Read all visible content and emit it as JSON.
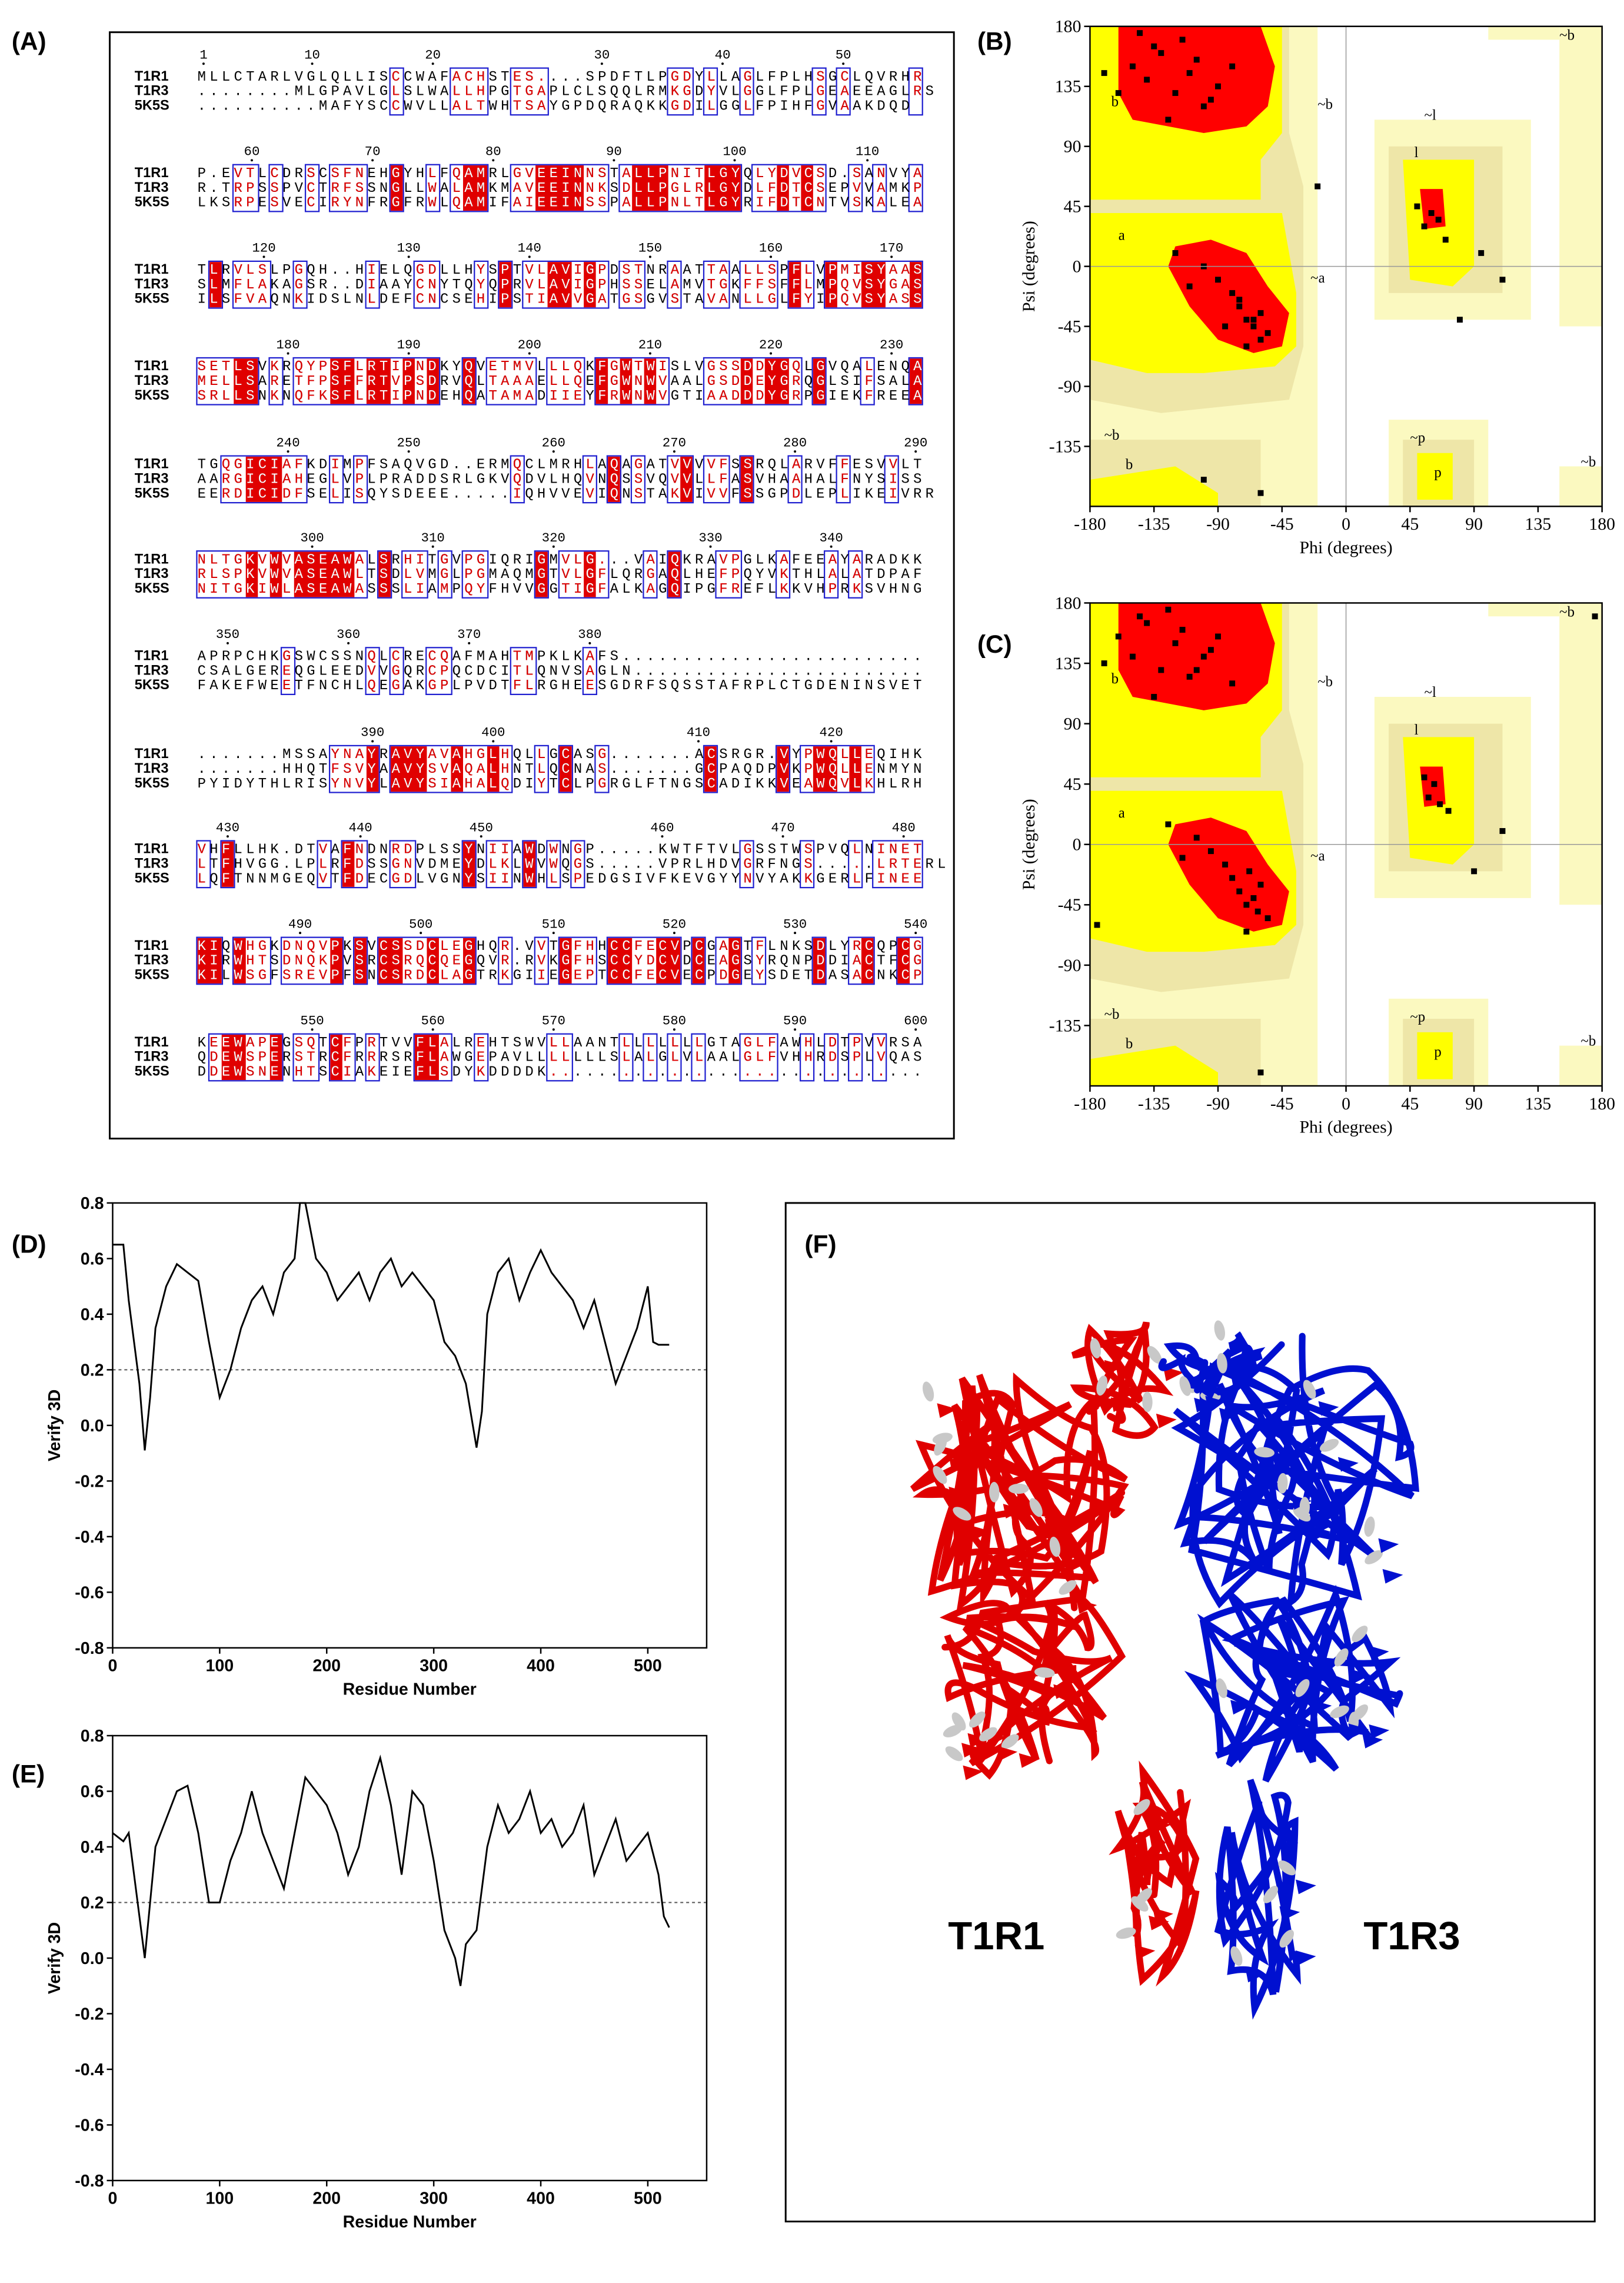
{
  "panel_labels": [
    "(A)",
    "(B)",
    "(C)",
    "(D)",
    "(E)",
    "(F)"
  ],
  "alignment": {
    "names": [
      "T1R1",
      "T1R3",
      "5K5S"
    ],
    "blocks": [
      {
        "numbers": [
          1,
          10,
          20,
          30,
          40,
          50
        ],
        "rows": [
          "MLLCTARLVGLQLLISCCWAFACHSTES....SPDFTLPGDYLLAGLFPLHSGCLQVRHR",
          "........MLGPAVLGLSLWALLHPGTGAPLCLSQQLRMKGDYVLGGLFPLGEAEEAGLRS",
          "..........MAFYSCCWVLLALTWHTSAYGPDQRAQKKGDILGGLFPIHFGVAAKDQD"
        ]
      },
      {
        "numbers": [
          60,
          70,
          80,
          90,
          100,
          110
        ],
        "rows": [
          "P.EVTLCDRSCSFNEHGYHLFQAMRLGVEEINNSTALLPNITLGYQLYDVCSD.SANVYA",
          "R.TRPSSPVCTRFSSNGLLWALAMKMAVEEINNKSDLLPGLRLGYDLFDTCSEPVVAMKP",
          "LKSRPESVECIRYNFRGFRWLQAMIFAIEEINSSPALLPNLTLGYRIFDTCNTVSKALEA"
        ]
      },
      {
        "numbers": [
          120,
          130,
          140,
          150,
          160,
          170
        ],
        "rows": [
          "TLRVLSLPGQH..HIELQGDLLHYSPTVLAVIGPDSTNRAATTAALLSPFLVPMISYAAS",
          "SLMFLAKAGSR..DIAAYCNYTQYQPRVLAVIGPHSSELAMVTGKFFSFFLMPQVSYGAS",
          "ILSFVAQNKIDSLNLDEFCNCSEHIPSTIAVVGATGSGVSTAVANLLGLFYIPQVSYASS"
        ]
      },
      {
        "numbers": [
          180,
          190,
          200,
          210,
          220,
          230
        ],
        "rows": [
          "SETLSVKRQYPSFLRTIPNDKYQVETMVLLLQKFGWTWISLVGSSDDYGQLGVQALENQA",
          "MELLSARETFPSFFRTVPSDRVQLTAAAELLQEFGWNWVAALGSDDEYGRQGLSIFSALA",
          "SRLLSNKNQFKSFLRTIPNDEHQATAMADIIEYFRWNWVGTIAADDDYGRPGIEKFREEA"
        ]
      },
      {
        "numbers": [
          240,
          250,
          260,
          270,
          280,
          290
        ],
        "rows": [
          "TGQGICIAFKDIMPFSAQVGD..ERMQCLMRHLAQAGATVVVVFSSRQLARVFFESVVLT",
          "AARGICIAHEGLVPLPRADDSRLGKVQDVLHQVNQSSVQVVLLFASVHAAHALFNYSISS",
          "EERDICIDFSELISQYSDEEE.....IQHVVEVIQNSTAKVIVVFSSGPDLEPLIKEIVRR"
        ]
      },
      {
        "numbers": [
          300,
          310,
          320,
          330,
          340
        ],
        "rows": [
          "NLTGKVWVASEAWALSRHITGVPGIQRIGMVLG...VAIQKRAVPGLKAFEEAYARADKK",
          "RLSPKVWVASEAWLTSDLVMGLPGMAQMGTVLGFLQRGAQLHEFPQYVKTHLALATDPAF",
          "NITGKIWLASEAWASSSLIAMPQYFHVVGGTIGFALKAGQIPGFREFLKKVHPRKSVHNG"
        ]
      },
      {
        "numbers": [
          350,
          360,
          370,
          380
        ],
        "rows": [
          "APRPCHKGSWCSSNQLCRECQAFMAHTMPKLKAFS.........................",
          "CSALGEREQGLEEDVVGQRCPQCDCITLQNVSAGLN........................",
          "FAKEFWEETFNCHLQEGAKGPLPVDTFLRGHEESGDRFSQSSTAFRPLCTGDENINSVET"
        ]
      },
      {
        "numbers": [
          390,
          400,
          410,
          420
        ],
        "rows": [
          ".......MSSAYNAYRAVYAVAHGLHQLLGCASG.......ACSRGR.VYPWQLLEQIHK",
          ".......HHQTFSVYAAVYSVAQALHNTLQCNAS.......GCPAQDPVKPWQLLENMYN",
          "PYIDYTHLRISYNVYLAVYSIAHALQDIYTCLPGRGLFTNGSCADIKKVEAWQVLKHLRH"
        ]
      },
      {
        "numbers": [
          430,
          440,
          450,
          460,
          470,
          480
        ],
        "rows": [
          "VHFLLHK.DTVAFNDNRDPLSSYNIIAWDWNGP.....KWTFTVLGSSTWSPVQLNINET",
          "LTFHVGG.LPLRFDSSGNVDMEYDLKLWVWQGS.....VPRLHDVGRFNGS.....LRTERL",
          "LQFTNNMGEQVTFDECGDLVGNYSIINWHLSPEDGSIVFKEVGYYNVYAKKGERLFINEE"
        ]
      },
      {
        "numbers": [
          490,
          500,
          510,
          520,
          530,
          540
        ],
        "rows": [
          "KIQWHGKDNQVPKSVCSSDCLEGHQR.VVTGFHHCCFECVPCGAGTFLNKSDLYRCQPCG",
          "KIRWHTSDNQKPVSRCSRQCQEGQVR.RVKGFHSCCYDCVDCEAGSYRQNPDDIACTFCG",
          "KILWSGFSREVPFSNCSRDCLAGTRKGIIEGEPTCCFECVECPDGEYSDETDASACNKCP"
        ]
      },
      {
        "numbers": [
          550,
          560,
          570,
          580,
          590,
          600
        ],
        "rows": [
          "KEEWAPEGSQTCFPRTVVFLALREHTSWVLLAANTLLLLLLLGTAGLFAWHLDTPVVRSA",
          "QDEWSPERSTRCFRRRSRFLAWGEPAVLLLLLLLSLALGLVLAALGLFVHHRDSPLVQAS",
          "DDEWSNENHTSCIAKEIEFLSDYKDDDDK..............................."
        ]
      }
    ]
  },
  "chart_data": [
    {
      "type": "scatter",
      "xlabel": "Phi (degrees)",
      "ylabel": "Psi (degrees)",
      "xlim": [
        -180,
        180
      ],
      "ylim": [
        -180,
        180
      ],
      "xticks": [
        -180,
        -135,
        -90,
        -45,
        0,
        45,
        90,
        135,
        180
      ],
      "yticks": [
        -135,
        -90,
        -45,
        0,
        45,
        90,
        135,
        180
      ],
      "region_labels": [
        "b",
        "~b",
        "a",
        "~a",
        "~l",
        "l",
        "~b",
        "b",
        "~p",
        "p",
        "~b",
        "~b"
      ],
      "color": "#000000",
      "x": [
        -150,
        -140,
        -130,
        -120,
        -110,
        -100,
        -90,
        -80,
        -125,
        -135,
        -115,
        -105,
        -95,
        -145,
        -160,
        -170,
        -75,
        -70,
        -65,
        -60,
        -55,
        -80,
        -90,
        -100,
        -70,
        -60,
        -85,
        -75,
        -65,
        -110,
        -120,
        60,
        55,
        65,
        70,
        50,
        80,
        -20,
        110,
        -60,
        -100,
        95
      ],
      "values": [
        150,
        140,
        160,
        130,
        145,
        120,
        135,
        150,
        110,
        165,
        170,
        155,
        125,
        175,
        130,
        145,
        -30,
        -40,
        -45,
        -35,
        -50,
        -20,
        -10,
        0,
        -60,
        -55,
        -45,
        -25,
        -40,
        -15,
        10,
        40,
        30,
        35,
        20,
        45,
        -40,
        60,
        -10,
        -170,
        -160,
        10
      ]
    },
    {
      "type": "scatter",
      "xlabel": "Phi (degrees)",
      "ylabel": "Psi (degrees)",
      "xlim": [
        -180,
        180
      ],
      "ylim": [
        -180,
        180
      ],
      "xticks": [
        -180,
        -135,
        -90,
        -45,
        0,
        45,
        90,
        135,
        180
      ],
      "yticks": [
        -135,
        -90,
        -45,
        0,
        45,
        90,
        135,
        180
      ],
      "region_labels": [
        "b",
        "~b",
        "a",
        "~a",
        "~l",
        "l",
        "~b",
        "b",
        "~p",
        "p",
        "~b",
        "~b"
      ],
      "color": "#000000",
      "x": [
        -160,
        -150,
        -140,
        -130,
        -120,
        -110,
        -100,
        -90,
        -80,
        -145,
        -125,
        -115,
        -105,
        -95,
        -170,
        -135,
        -75,
        -70,
        -65,
        -60,
        -55,
        -85,
        -95,
        -105,
        -70,
        -62,
        -80,
        -68,
        -115,
        -125,
        62,
        58,
        66,
        72,
        55,
        110,
        -175,
        175,
        -60,
        90
      ],
      "values": [
        155,
        140,
        165,
        130,
        150,
        125,
        140,
        155,
        120,
        170,
        175,
        160,
        130,
        145,
        135,
        110,
        -35,
        -45,
        -40,
        -30,
        -55,
        -15,
        -5,
        5,
        -65,
        -50,
        -25,
        -20,
        -10,
        15,
        45,
        35,
        30,
        25,
        50,
        10,
        -60,
        170,
        -170,
        -20
      ]
    },
    {
      "type": "line",
      "xlabel": "Residue Number",
      "ylabel": "Verify 3D",
      "xlim": [
        0,
        555
      ],
      "ylim": [
        -0.8,
        0.8
      ],
      "xticks": [
        0,
        100,
        200,
        300,
        400,
        500
      ],
      "yticks": [
        -0.8,
        -0.6,
        -0.4,
        -0.2,
        {
          "value": 0,
          "label": "0.0"
        },
        0.2,
        0.4,
        0.6,
        0.8
      ],
      "threshold": 0.2,
      "color": "#000000",
      "x": [
        0,
        10,
        15,
        20,
        25,
        30,
        35,
        40,
        50,
        60,
        70,
        80,
        90,
        95,
        100,
        110,
        120,
        130,
        140,
        150,
        160,
        170,
        175,
        180,
        190,
        200,
        210,
        220,
        230,
        240,
        250,
        260,
        270,
        280,
        290,
        300,
        310,
        320,
        330,
        340,
        345,
        350,
        360,
        370,
        380,
        390,
        400,
        410,
        420,
        430,
        440,
        450,
        460,
        470,
        480,
        490,
        500,
        505,
        510,
        520
      ],
      "values": [
        0.65,
        0.65,
        0.45,
        0.3,
        0.15,
        -0.09,
        0.1,
        0.35,
        0.5,
        0.58,
        0.55,
        0.52,
        0.3,
        0.2,
        0.1,
        0.2,
        0.35,
        0.45,
        0.5,
        0.4,
        0.55,
        0.6,
        0.8,
        0.8,
        0.6,
        0.55,
        0.45,
        0.5,
        0.55,
        0.45,
        0.55,
        0.6,
        0.5,
        0.55,
        0.5,
        0.45,
        0.3,
        0.25,
        0.15,
        -0.08,
        0.05,
        0.4,
        0.55,
        0.6,
        0.45,
        0.55,
        0.63,
        0.55,
        0.5,
        0.45,
        0.35,
        0.45,
        0.3,
        0.15,
        0.25,
        0.35,
        0.5,
        0.3,
        0.29,
        0.29
      ]
    },
    {
      "type": "line",
      "xlabel": "Residue Number",
      "ylabel": "Verify 3D",
      "xlim": [
        0,
        555
      ],
      "ylim": [
        -0.8,
        0.8
      ],
      "xticks": [
        0,
        100,
        200,
        300,
        400,
        500
      ],
      "yticks": [
        -0.8,
        -0.6,
        -0.4,
        -0.2,
        {
          "value": 0,
          "label": "0.0"
        },
        0.2,
        0.4,
        0.6,
        0.8
      ],
      "threshold": 0.2,
      "color": "#000000",
      "x": [
        0,
        10,
        15,
        20,
        25,
        30,
        35,
        40,
        50,
        60,
        70,
        80,
        90,
        100,
        110,
        120,
        130,
        140,
        150,
        160,
        170,
        180,
        190,
        200,
        210,
        220,
        230,
        240,
        250,
        260,
        270,
        280,
        290,
        300,
        310,
        320,
        325,
        330,
        340,
        350,
        360,
        370,
        380,
        390,
        400,
        410,
        420,
        430,
        440,
        450,
        460,
        470,
        480,
        490,
        500,
        510,
        515,
        520
      ],
      "values": [
        0.45,
        0.42,
        0.45,
        0.3,
        0.15,
        0,
        0.2,
        0.4,
        0.5,
        0.6,
        0.62,
        0.45,
        0.2,
        0.2,
        0.35,
        0.45,
        0.6,
        0.45,
        0.35,
        0.25,
        0.45,
        0.65,
        0.6,
        0.55,
        0.45,
        0.3,
        0.4,
        0.6,
        0.72,
        0.55,
        0.3,
        0.6,
        0.55,
        0.35,
        0.1,
        0,
        -0.1,
        0.05,
        0.1,
        0.4,
        0.55,
        0.45,
        0.5,
        0.6,
        0.45,
        0.5,
        0.4,
        0.45,
        0.55,
        0.3,
        0.4,
        0.5,
        0.35,
        0.4,
        0.45,
        0.3,
        0.15,
        0.11
      ]
    }
  ],
  "structure": {
    "labels": [
      "T1R1",
      "T1R3"
    ],
    "colors": [
      "#e00000",
      "#0010d0"
    ]
  }
}
